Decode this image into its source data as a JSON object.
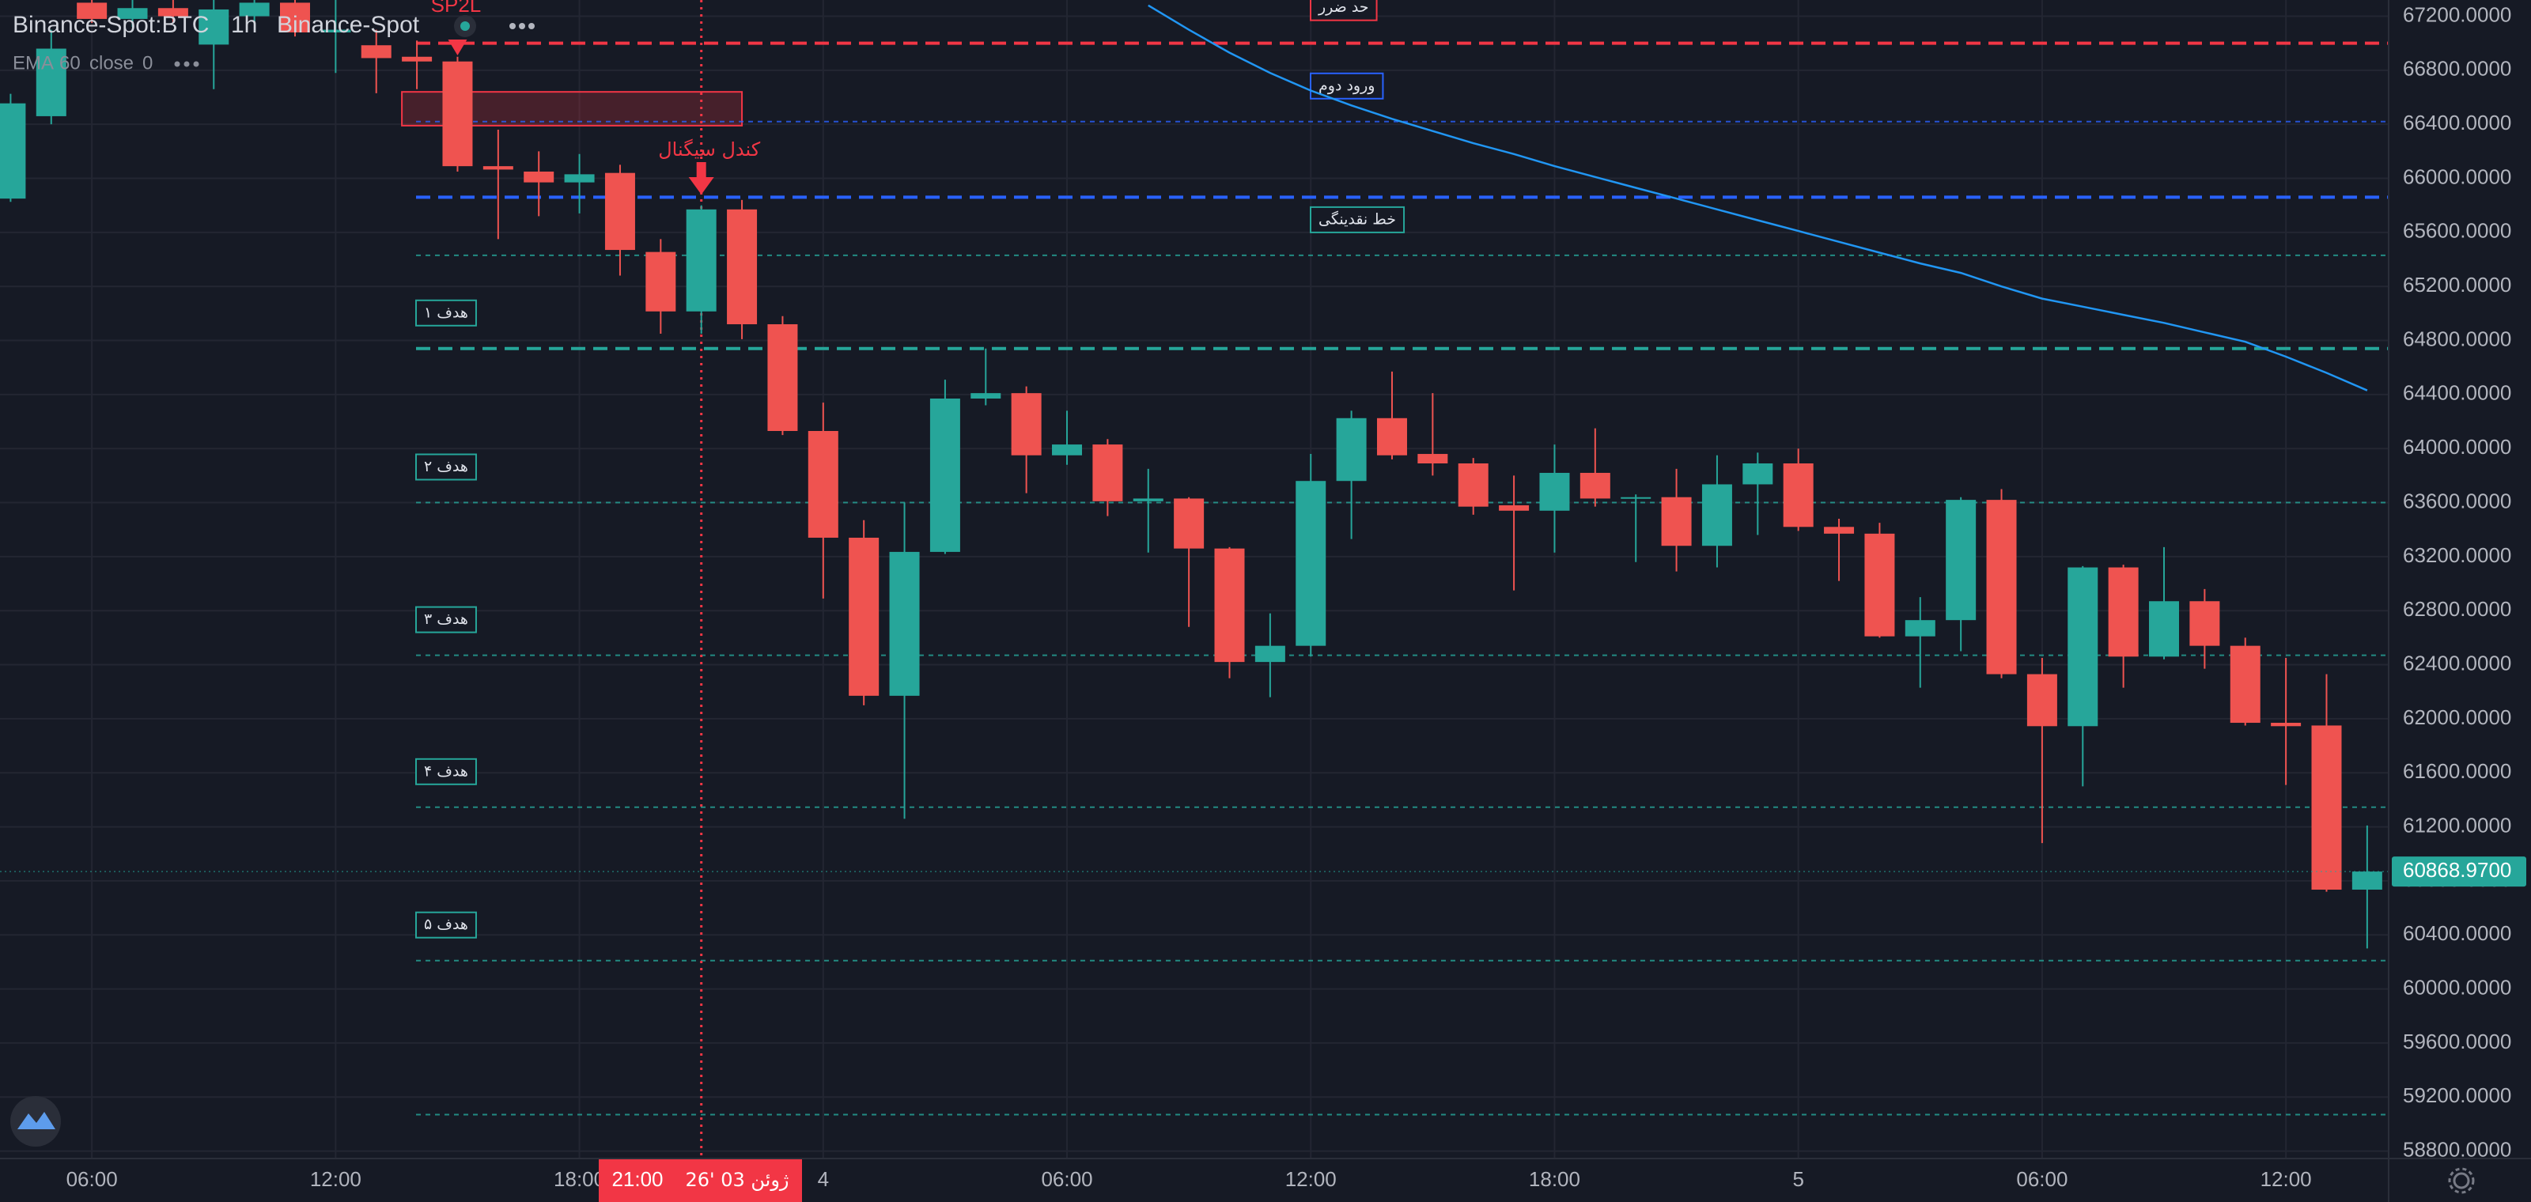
{
  "chart_data": {
    "type": "candlestick",
    "title": "Binance-Spot:BTC",
    "interval": "1h",
    "exchange": "Binance-Spot",
    "indicator": {
      "name": "EMA",
      "params": [
        "60",
        "close",
        "0"
      ],
      "color": "#2196f3",
      "values": [
        null,
        null,
        null,
        null,
        null,
        null,
        null,
        null,
        null,
        null,
        null,
        null,
        null,
        null,
        null,
        null,
        null,
        null,
        null,
        null,
        null,
        null,
        null,
        null,
        null,
        null,
        null,
        null,
        67280,
        67100,
        66930,
        66780,
        66650,
        66540,
        66440,
        66350,
        66260,
        66180,
        66090,
        66010,
        65930,
        65850,
        65770,
        65690,
        65610,
        65530,
        65450,
        65370,
        65300,
        65200,
        65110,
        65050,
        64990,
        64930,
        64860,
        64790,
        64680,
        64560,
        64430
      ]
    },
    "categories": [
      null,
      null,
      "06:00",
      null,
      null,
      null,
      null,
      null,
      "12:00",
      null,
      null,
      null,
      null,
      null,
      "18:00",
      null,
      null,
      null,
      null,
      null,
      "4",
      null,
      null,
      null,
      null,
      null,
      "06:00",
      null,
      null,
      null,
      null,
      null,
      "12:00",
      null,
      null,
      null,
      null,
      null,
      "18:00",
      null,
      null,
      null,
      null,
      null,
      "5",
      null,
      null,
      null,
      null,
      null,
      "06:00",
      null,
      null,
      null,
      null,
      null,
      "12:00",
      null,
      null
    ],
    "open": [
      65850,
      66460,
      67300,
      67180,
      67260,
      66990,
      67200,
      67300,
      67080,
      66985,
      66900,
      66865,
      66090,
      66050,
      65970,
      66040,
      65455,
      65015,
      65770,
      64920,
      64130,
      63340,
      62170,
      63235,
      64370,
      64410,
      63950,
      64030,
      63610,
      63630,
      63260,
      62420,
      62540,
      63760,
      64225,
      63960,
      63890,
      63580,
      63540,
      63820,
      63630,
      63640,
      63280,
      63735,
      63890,
      63420,
      63370,
      62610,
      62730,
      63620,
      62330,
      61945,
      63120,
      62460,
      62870,
      62540,
      61970,
      61950,
      60735
    ],
    "high": [
      66626,
      67100,
      67320,
      67320,
      67320,
      67320,
      67320,
      67320,
      67320,
      67100,
      67020,
      66900,
      66360,
      66200,
      66180,
      66100,
      65550,
      65800,
      65840,
      64980,
      64340,
      63470,
      63600,
      64510,
      64740,
      64460,
      64280,
      64070,
      63850,
      63640,
      63270,
      62780,
      63960,
      64280,
      64570,
      64410,
      63930,
      63800,
      64030,
      64150,
      63660,
      63850,
      63950,
      63970,
      64000,
      63480,
      63450,
      62900,
      63640,
      63700,
      62450,
      63130,
      63140,
      63270,
      62960,
      62600,
      62450,
      62330,
      61210
    ],
    "low": [
      65826,
      66400,
      67150,
      67120,
      67150,
      66660,
      67150,
      67050,
      66780,
      66630,
      66660,
      66050,
      65550,
      65720,
      65740,
      65280,
      64850,
      64850,
      64810,
      64100,
      62890,
      62100,
      61260,
      63220,
      64320,
      63670,
      63880,
      63500,
      63230,
      62680,
      62300,
      62160,
      62460,
      63330,
      63920,
      63800,
      63510,
      62950,
      63230,
      63570,
      63160,
      63090,
      63120,
      63360,
      63390,
      63020,
      62600,
      62230,
      62500,
      62300,
      61080,
      61500,
      62230,
      62440,
      62370,
      61950,
      61510,
      60720,
      60300
    ],
    "close": [
      66555,
      66960,
      67180,
      67260,
      67200,
      67250,
      67300,
      67080,
      67100,
      66890,
      66865,
      66090,
      66065,
      65970,
      66030,
      65470,
      65015,
      65770,
      64920,
      64130,
      63340,
      62170,
      63235,
      64370,
      64410,
      63950,
      64030,
      63610,
      63630,
      63260,
      62420,
      62540,
      63760,
      64225,
      63950,
      63890,
      63570,
      63540,
      63820,
      63630,
      63640,
      63280,
      63735,
      63890,
      63420,
      63370,
      62610,
      62730,
      63620,
      62330,
      61945,
      63120,
      62460,
      62870,
      62540,
      61970,
      61945,
      60735,
      60869
    ],
    "up_color": "#26a69a",
    "down_color": "#ef5350",
    "ylim": [
      58745,
      67320
    ],
    "yticks": [
      {
        "value": 58800,
        "label": "58800.0000"
      },
      {
        "value": 59200,
        "label": "59200.0000"
      },
      {
        "value": 59600,
        "label": "59600.0000"
      },
      {
        "value": 60000,
        "label": "60000.0000"
      },
      {
        "value": 60400,
        "label": "60400.0000"
      },
      {
        "value": 60800,
        "label": "60800.0000"
      },
      {
        "value": 61200,
        "label": "61200.0000"
      },
      {
        "value": 61600,
        "label": "61600.0000"
      },
      {
        "value": 62000,
        "label": "62000.0000"
      },
      {
        "value": 62400,
        "label": "62400.0000"
      },
      {
        "value": 62800,
        "label": "62800.0000"
      },
      {
        "value": 63200,
        "label": "63200.0000"
      },
      {
        "value": 63600,
        "label": "63600.0000"
      },
      {
        "value": 64000,
        "label": "64000.0000"
      },
      {
        "value": 64400,
        "label": "64400.0000"
      },
      {
        "value": 64800,
        "label": "64800.0000"
      },
      {
        "value": 65200,
        "label": "65200.0000"
      },
      {
        "value": 65600,
        "label": "65600.0000"
      },
      {
        "value": 66000,
        "label": "66000.0000"
      },
      {
        "value": 66400,
        "label": "66400.0000"
      },
      {
        "value": 66800,
        "label": "66800.0000"
      },
      {
        "value": 67200,
        "label": "67200.0000"
      }
    ],
    "grid": true,
    "last_price": {
      "value": 60868.97,
      "label": "60868.9700"
    },
    "levels": [
      {
        "value": 67000,
        "color": "#f23645",
        "style": "dashed",
        "label": "حد ضرر"
      },
      {
        "value": 66420,
        "color": "#2962ff",
        "style": "dotted",
        "label": "ورود دوم"
      },
      {
        "value": 65860,
        "color": "#2962ff",
        "style": "dashed"
      },
      {
        "value": 65430,
        "color": "#26a69a",
        "style": "dotted",
        "label": "خط نقدینگی"
      },
      {
        "value": 64740,
        "color": "#26a69a",
        "style": "dashed",
        "label": "هدف ۱"
      },
      {
        "value": 63600,
        "color": "#26a69a",
        "style": "dotted",
        "label": "هدف ۲"
      },
      {
        "value": 62470,
        "color": "#26a69a",
        "style": "dotted",
        "label": "هدف ۳"
      },
      {
        "value": 61345,
        "color": "#26a69a",
        "style": "dotted",
        "label": "هدف ۴"
      },
      {
        "value": 60210,
        "color": "#26a69a",
        "style": "dotted",
        "label": "هدف ۵"
      },
      {
        "value": 59070,
        "color": "#26a69a",
        "style": "dotted"
      }
    ],
    "zone": {
      "high": 66640,
      "low": 66390,
      "color": "#f23645"
    },
    "annotations": [
      {
        "text": "SP2L",
        "color": "#f23645"
      },
      {
        "text": "کندل سیگنال",
        "color": "#f23645"
      }
    ],
    "crosshair": {
      "time": "21:00",
      "date": "26' ژوئن 03",
      "color": "#f23645"
    }
  }
}
